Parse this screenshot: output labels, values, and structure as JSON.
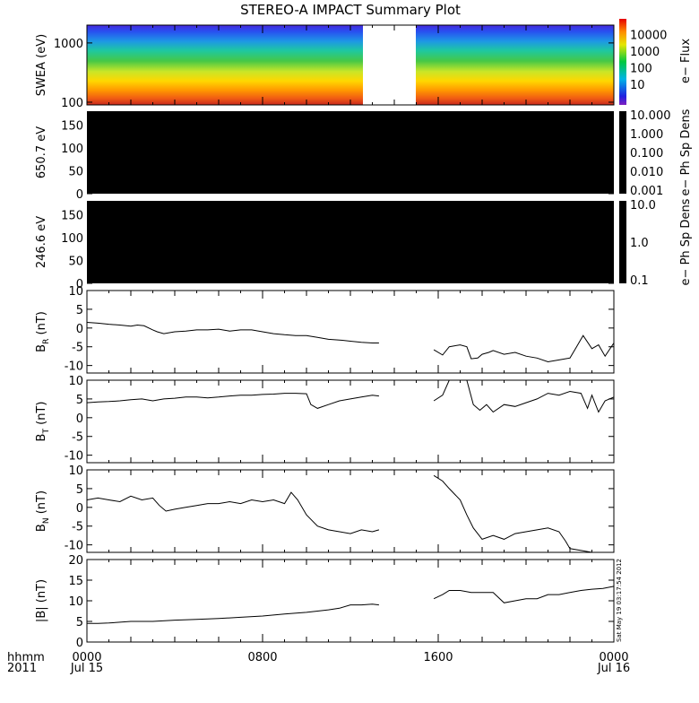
{
  "title": "STEREO-A IMPACT Summary Plot",
  "timestamp": "Sat May 19 03:17:54 2012",
  "x_axis": {
    "left_labels": [
      "hhmm",
      "2011"
    ],
    "ticks": [
      {
        "hhmm": "0000",
        "date": "Jul 15",
        "hour": 0
      },
      {
        "hhmm": "0800",
        "date": "",
        "hour": 8
      },
      {
        "hhmm": "1600",
        "date": "",
        "hour": 16
      },
      {
        "hhmm": "0000",
        "date": "Jul 16",
        "hour": 24
      }
    ]
  },
  "colors": {
    "line": "#000000",
    "frame": "#000000",
    "background": "#ffffff",
    "gap": "#ffffff"
  },
  "chart_data": [
    {
      "type": "heatmap",
      "panel": "swea",
      "ylabel": "SWEA (eV)",
      "yscale": "log",
      "ylim": [
        90,
        2000
      ],
      "yticks": [
        100,
        1000
      ],
      "colorbar": {
        "label": "e− Flux",
        "scale": "log",
        "ticks": [
          "10",
          "100",
          "1000",
          "10000"
        ],
        "tick_values": [
          10,
          100,
          1000,
          10000
        ]
      },
      "data_gap_hours": [
        13.4,
        15.7
      ]
    },
    {
      "type": "heatmap",
      "panel": "pad650",
      "ylabel": "650.7 eV",
      "ylim": [
        0,
        180
      ],
      "yticks": [
        0,
        50,
        100,
        150
      ],
      "fill": "#000000",
      "colorbar": {
        "label": "e− Ph Sp Dens",
        "scale": "log",
        "ticks": [
          "10.000",
          "1.000",
          "0.100",
          "0.010",
          "0.001"
        ]
      }
    },
    {
      "type": "heatmap",
      "panel": "pad246",
      "ylabel": "246.6 eV",
      "ylim": [
        0,
        180
      ],
      "yticks": [
        0,
        50,
        100,
        150
      ],
      "fill": "#000000",
      "colorbar": {
        "label": "e− Ph Sp Dens",
        "scale": "log",
        "ticks": [
          "10.0",
          "1.0",
          "0.1"
        ]
      }
    },
    {
      "type": "line",
      "panel": "br",
      "ylabel": "B_R (nT)",
      "ylim": [
        -12,
        10
      ],
      "yticks": [
        10,
        5,
        0,
        -5,
        -10
      ],
      "x": [
        0,
        0.5,
        1,
        1.5,
        2,
        2.3,
        2.6,
        3,
        3.2,
        3.5,
        4,
        4.5,
        5,
        5.5,
        6,
        6.5,
        7,
        7.5,
        8,
        8.5,
        9,
        9.5,
        10,
        10.5,
        11,
        11.5,
        12,
        12.5,
        13,
        13.3,
        15.8,
        16.2,
        16.5,
        17,
        17.3,
        17.5,
        17.8,
        18,
        18.3,
        18.5,
        19,
        19.5,
        20,
        20.5,
        21,
        21.5,
        22,
        22.3,
        22.6,
        23,
        23.3,
        23.6,
        24
      ],
      "values": [
        1.5,
        1.3,
        1,
        0.8,
        0.5,
        0.8,
        0.6,
        -0.5,
        -1.0,
        -1.5,
        -1,
        -0.8,
        -0.5,
        -0.5,
        -0.3,
        -0.8,
        -0.5,
        -0.5,
        -1,
        -1.5,
        -1.8,
        -2,
        -2,
        -2.5,
        -3,
        -3.2,
        -3.5,
        -3.8,
        -4,
        -4.0,
        -5.8,
        -7.2,
        -5.0,
        -4.5,
        -5.0,
        -8.2,
        -8.0,
        -7.0,
        -6.5,
        -6.0,
        -7.0,
        -6.5,
        -7.5,
        -8.0,
        -9.0,
        -8.5,
        -8.0,
        -5.0,
        -2.0,
        -5.5,
        -4.5,
        -7.5,
        -4.0
      ],
      "breaks_after_hour": 13.5
    },
    {
      "type": "line",
      "panel": "bt",
      "ylabel": "B_T (nT)",
      "ylim": [
        -12,
        10
      ],
      "yticks": [
        10,
        5,
        0,
        -5,
        -10
      ],
      "x": [
        0,
        0.5,
        1,
        1.5,
        2,
        2.5,
        3,
        3.5,
        4,
        4.5,
        5,
        5.5,
        6,
        6.5,
        7,
        7.5,
        8,
        8.5,
        9,
        9.5,
        10,
        10.2,
        10.5,
        11,
        11.5,
        12,
        12.5,
        13,
        13.3,
        15.8,
        16.2,
        16.5,
        17,
        17.3,
        17.6,
        17.9,
        18.2,
        18.5,
        19,
        19.5,
        20,
        20.5,
        21,
        21.5,
        22,
        22.5,
        22.8,
        23,
        23.3,
        23.6,
        24
      ],
      "values": [
        4,
        4.2,
        4.3,
        4.5,
        4.8,
        5,
        4.5,
        5,
        5.2,
        5.5,
        5.5,
        5.3,
        5.5,
        5.8,
        6,
        6,
        6.2,
        6.3,
        6.5,
        6.5,
        6.4,
        3.5,
        2.5,
        3.5,
        4.5,
        5,
        5.5,
        6,
        5.8,
        4.5,
        6,
        10.5,
        10.5,
        10.5,
        3.5,
        2.0,
        3.5,
        1.5,
        3.5,
        3.0,
        4.0,
        5.0,
        6.5,
        6.0,
        7.0,
        6.5,
        2.5,
        6.0,
        1.5,
        4.5,
        5.5
      ],
      "breaks_after_hour": 13.5
    },
    {
      "type": "line",
      "panel": "bn",
      "ylabel": "B_N (nT)",
      "ylim": [
        -12,
        10
      ],
      "yticks": [
        10,
        5,
        0,
        -5,
        -10
      ],
      "x": [
        0,
        0.5,
        1,
        1.5,
        2,
        2.5,
        3,
        3.3,
        3.6,
        4,
        4.5,
        5,
        5.5,
        6,
        6.5,
        7,
        7.5,
        8,
        8.5,
        9,
        9.3,
        9.6,
        10,
        10.5,
        11,
        11.5,
        12,
        12.5,
        13,
        13.3,
        15.8,
        16.2,
        16.5,
        17,
        17.3,
        17.6,
        18,
        18.5,
        19,
        19.5,
        20,
        20.5,
        21,
        21.5,
        21.8,
        22,
        22.5,
        23
      ],
      "values": [
        2,
        2.5,
        2,
        1.5,
        3,
        2,
        2.5,
        0.5,
        -1,
        -0.5,
        0,
        0.5,
        1,
        1,
        1.5,
        1,
        2,
        1.5,
        2,
        1,
        4,
        2,
        -2,
        -5,
        -6,
        -6.5,
        -7,
        -6,
        -6.5,
        -6.0,
        8.5,
        7,
        5,
        2,
        -2,
        -5.5,
        -8.5,
        -7.5,
        -8.5,
        -7,
        -6.5,
        -6,
        -5.5,
        -6.5,
        -9.0,
        -11.0,
        -11.5,
        -12
      ],
      "breaks_after_hour": 13.5
    },
    {
      "type": "line",
      "panel": "bmag",
      "ylabel": "|B| (nT)",
      "ylim": [
        0,
        20
      ],
      "yticks": [
        20,
        15,
        10,
        5,
        0
      ],
      "x": [
        0,
        0.5,
        1,
        1.5,
        2,
        3,
        4,
        5,
        6,
        7,
        8,
        9,
        10,
        11,
        11.5,
        12,
        12.5,
        13,
        13.3,
        15.8,
        16.2,
        16.5,
        17,
        17.5,
        18,
        18.5,
        19,
        19.5,
        20,
        20.5,
        21,
        21.5,
        22,
        22.5,
        23,
        23.5,
        24
      ],
      "values": [
        4.5,
        4.5,
        4.6,
        4.8,
        5,
        5,
        5.3,
        5.5,
        5.7,
        6,
        6.3,
        6.8,
        7.2,
        7.8,
        8.2,
        9,
        9,
        9.2,
        9,
        10.5,
        11.5,
        12.5,
        12.5,
        12,
        12,
        12,
        9.5,
        10,
        10.5,
        10.5,
        11.5,
        11.5,
        12,
        12.5,
        12.8,
        13,
        13.5
      ],
      "breaks_after_hour": 13.5
    }
  ]
}
